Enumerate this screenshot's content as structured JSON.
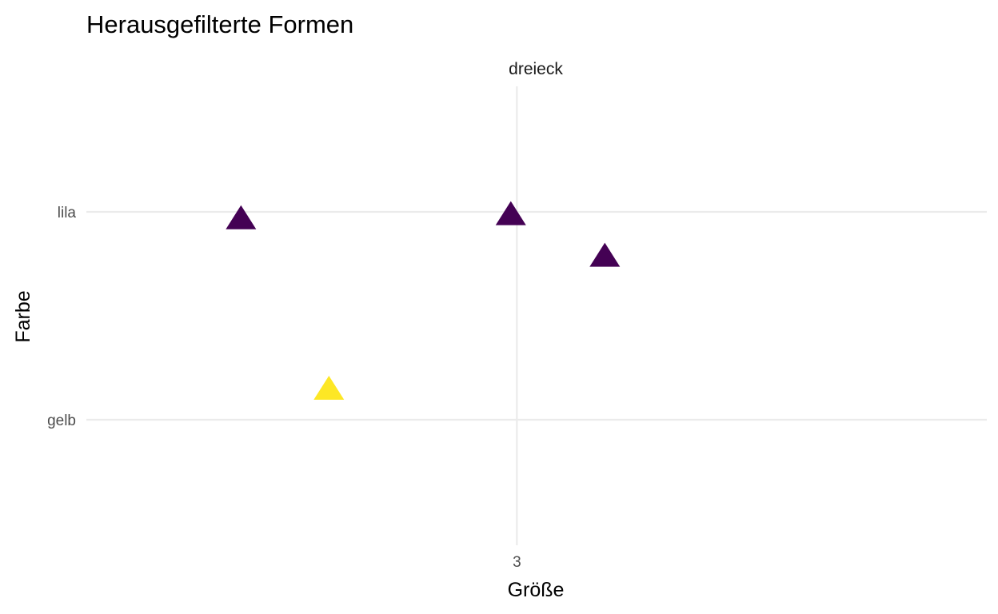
{
  "chart_data": {
    "type": "scatter",
    "title": "Herausgefilterte Formen",
    "facet_label": "dreieck",
    "xlabel": "Größe",
    "ylabel": "Farbe",
    "x_ticks": [
      3
    ],
    "y_categories": [
      "gelb",
      "lila"
    ],
    "xlim": [
      1.58,
      4.55
    ],
    "grid": true,
    "legend": "none",
    "marker": "triangle",
    "colors": {
      "lila": "#440154",
      "gelb": "#FDE725"
    },
    "points": [
      {
        "x": 2.09,
        "y": "lila",
        "y_jitter": -0.04,
        "color": "lila"
      },
      {
        "x": 2.98,
        "y": "lila",
        "y_jitter": -0.02,
        "color": "lila"
      },
      {
        "x": 3.29,
        "y": "lila",
        "y_jitter": -0.22,
        "color": "lila"
      },
      {
        "x": 2.38,
        "y": "gelb",
        "y_jitter": 0.14,
        "color": "gelb"
      }
    ]
  }
}
